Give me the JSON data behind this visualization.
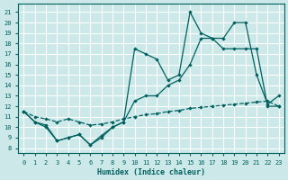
{
  "xlabel": "Humidex (Indice chaleur)",
  "bg_color": "#cce8e8",
  "grid_color": "#ffffff",
  "line_color": "#006060",
  "xlim": [
    -0.5,
    23.5
  ],
  "ylim": [
    7.5,
    21.8
  ],
  "yticks": [
    8,
    9,
    10,
    11,
    12,
    13,
    14,
    15,
    16,
    17,
    18,
    19,
    20,
    21
  ],
  "xticks": [
    0,
    1,
    2,
    3,
    4,
    5,
    6,
    7,
    8,
    9,
    10,
    11,
    12,
    13,
    14,
    15,
    16,
    17,
    18,
    19,
    20,
    21,
    22,
    23
  ],
  "line1_x": [
    0,
    1,
    2,
    3,
    4,
    5,
    6,
    7,
    8,
    9,
    10,
    11,
    12,
    13,
    14,
    15,
    16,
    17,
    18,
    19,
    20,
    21,
    22,
    23
  ],
  "line1_y": [
    11.5,
    10.5,
    10.2,
    8.7,
    9.0,
    9.3,
    8.3,
    9.2,
    10.0,
    10.5,
    17.5,
    17.0,
    16.5,
    14.5,
    15.0,
    21.0,
    19.0,
    18.5,
    18.5,
    20.0,
    20.0,
    15.0,
    12.2,
    13.0
  ],
  "line2_x": [
    0,
    1,
    2,
    3,
    4,
    5,
    6,
    7,
    8,
    9,
    10,
    11,
    12,
    13,
    14,
    15,
    16,
    17,
    18,
    19,
    20,
    21,
    22,
    23
  ],
  "line2_y": [
    11.5,
    10.5,
    10.0,
    8.7,
    9.0,
    9.3,
    8.3,
    9.0,
    10.0,
    10.5,
    12.5,
    13.0,
    13.0,
    14.0,
    14.5,
    16.0,
    18.5,
    18.5,
    17.5,
    17.5,
    17.5,
    17.5,
    12.0,
    12.0
  ],
  "line3_x": [
    0,
    1,
    2,
    3,
    4,
    5,
    6,
    7,
    8,
    9,
    10,
    11,
    12,
    13,
    14,
    15,
    16,
    17,
    18,
    19,
    20,
    21,
    22,
    23
  ],
  "line3_y": [
    11.5,
    11.0,
    10.8,
    10.5,
    10.8,
    10.5,
    10.2,
    10.3,
    10.5,
    10.8,
    11.0,
    11.2,
    11.3,
    11.5,
    11.6,
    11.8,
    11.9,
    12.0,
    12.1,
    12.2,
    12.3,
    12.4,
    12.5,
    12.0
  ]
}
